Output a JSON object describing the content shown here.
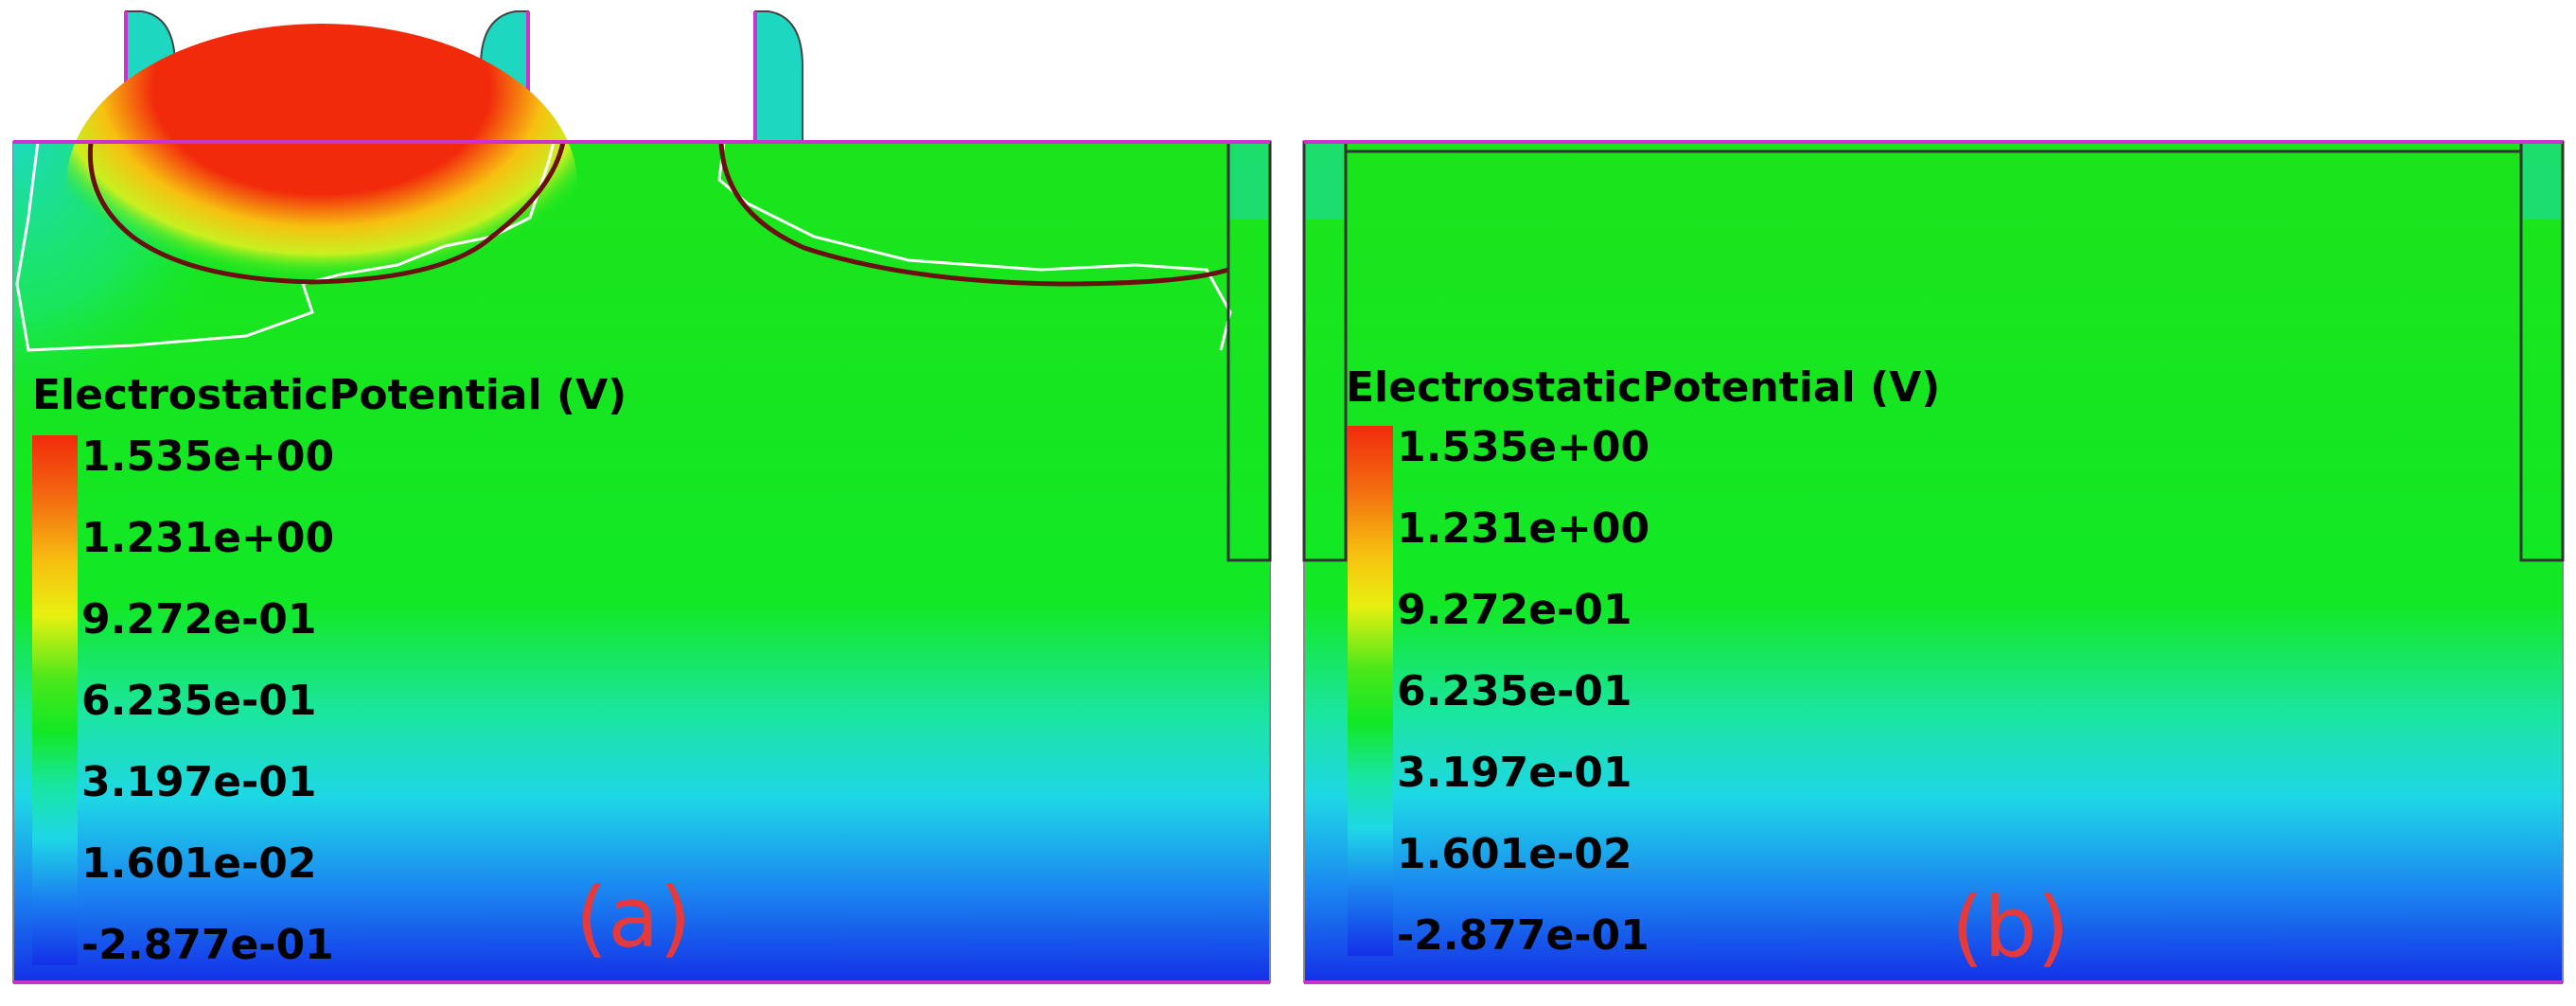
{
  "colorbar": {
    "title": "ElectrostaticPotential (V)",
    "ticks": [
      "1.535e+00",
      "1.231e+00",
      "9.272e-01",
      "6.235e-01",
      "3.197e-01",
      "1.601e-02",
      "-2.877e-01"
    ]
  },
  "panels": [
    {
      "label": "(a)",
      "variant": "with-gates-and-depletion"
    },
    {
      "label": "(b)",
      "variant": "uniform"
    }
  ],
  "colors": {
    "green": "#12ea12",
    "cyan": "#1ed7e6",
    "blue": "#1430e8",
    "red": "#f22a0c",
    "junction": "#6b1010",
    "outline": "#cc33cc"
  }
}
